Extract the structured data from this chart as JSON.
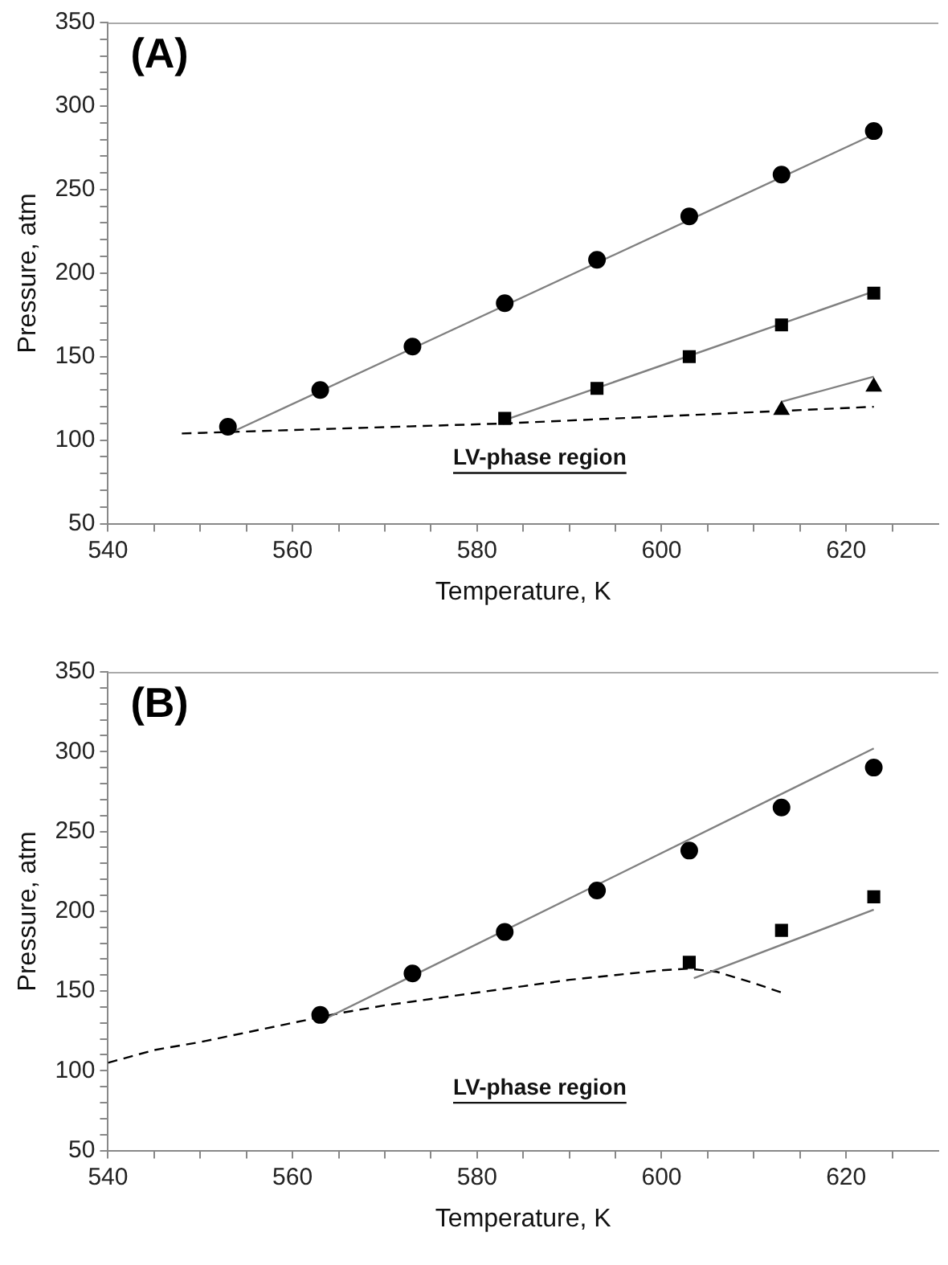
{
  "chart_data": [
    {
      "type": "scatter",
      "title": "(A)",
      "xlabel": "Temperature, K",
      "ylabel": "Pressure, atm",
      "grid": false,
      "legend": false,
      "xlim": [
        540,
        630
      ],
      "ylim": [
        50,
        350
      ],
      "xticks": [
        540,
        {
          "value": 545,
          "label": null
        },
        {
          "value": 550,
          "label": null
        },
        {
          "value": 555,
          "label": null
        },
        560,
        {
          "value": 565,
          "label": null
        },
        {
          "value": 570,
          "label": null
        },
        {
          "value": 575,
          "label": null
        },
        580,
        {
          "value": 585,
          "label": null
        },
        {
          "value": 590,
          "label": null
        },
        {
          "value": 595,
          "label": null
        },
        600,
        {
          "value": 605,
          "label": null
        },
        {
          "value": 610,
          "label": null
        },
        {
          "value": 615,
          "label": null
        },
        620,
        {
          "value": 625,
          "label": null
        }
      ],
      "yticks": [
        50,
        {
          "value": 60,
          "label": null
        },
        {
          "value": 70,
          "label": null
        },
        {
          "value": 80,
          "label": null
        },
        {
          "value": 90,
          "label": null
        },
        100,
        {
          "value": 110,
          "label": null
        },
        {
          "value": 120,
          "label": null
        },
        {
          "value": 130,
          "label": null
        },
        {
          "value": 140,
          "label": null
        },
        150,
        {
          "value": 160,
          "label": null
        },
        {
          "value": 170,
          "label": null
        },
        {
          "value": 180,
          "label": null
        },
        {
          "value": 190,
          "label": null
        },
        200,
        {
          "value": 210,
          "label": null
        },
        {
          "value": 220,
          "label": null
        },
        {
          "value": 230,
          "label": null
        },
        {
          "value": 240,
          "label": null
        },
        250,
        {
          "value": 260,
          "label": null
        },
        {
          "value": 270,
          "label": null
        },
        {
          "value": 280,
          "label": null
        },
        {
          "value": 290,
          "label": null
        },
        300,
        {
          "value": 310,
          "label": null
        },
        {
          "value": 320,
          "label": null
        },
        {
          "value": 330,
          "label": null
        },
        {
          "value": 340,
          "label": null
        },
        350
      ],
      "annotations": [
        "LV-phase region"
      ],
      "series": [
        {
          "type": "scatter",
          "marker": "circle",
          "color": "#000000",
          "x": [
            553,
            563,
            573,
            583,
            593,
            603,
            613,
            623
          ],
          "values": [
            108,
            130,
            156,
            182,
            208,
            234,
            259,
            285
          ]
        },
        {
          "type": "scatter",
          "marker": "square",
          "color": "#000000",
          "x": [
            583,
            593,
            603,
            613,
            623
          ],
          "values": [
            113,
            131,
            150,
            169,
            188
          ]
        },
        {
          "type": "scatter",
          "marker": "triangle",
          "color": "#000000",
          "x": [
            613,
            623
          ],
          "values": [
            118,
            132
          ]
        },
        {
          "type": "line",
          "marker": "none",
          "line_style": "solid",
          "color": "#808080",
          "x": [
            553.5,
            623
          ],
          "values": [
            105,
            283
          ]
        },
        {
          "type": "line",
          "marker": "none",
          "line_style": "solid",
          "color": "#808080",
          "x": [
            583,
            623
          ],
          "values": [
            112,
            189
          ]
        },
        {
          "type": "line",
          "marker": "none",
          "line_style": "solid",
          "color": "#808080",
          "x": [
            613,
            623
          ],
          "values": [
            123,
            138
          ]
        },
        {
          "type": "line",
          "marker": "none",
          "line_style": "dashed",
          "color": "#000000",
          "x": [
            548,
            583,
            603,
            623
          ],
          "values": [
            104,
            110,
            115,
            120
          ]
        }
      ]
    },
    {
      "type": "scatter",
      "title": "(B)",
      "xlabel": "Temperature, K",
      "ylabel": "Pressure, atm",
      "grid": false,
      "legend": false,
      "xlim": [
        540,
        630
      ],
      "ylim": [
        50,
        350
      ],
      "xticks": [
        540,
        {
          "value": 545,
          "label": null
        },
        {
          "value": 550,
          "label": null
        },
        {
          "value": 555,
          "label": null
        },
        560,
        {
          "value": 565,
          "label": null
        },
        {
          "value": 570,
          "label": null
        },
        {
          "value": 575,
          "label": null
        },
        580,
        {
          "value": 585,
          "label": null
        },
        {
          "value": 590,
          "label": null
        },
        {
          "value": 595,
          "label": null
        },
        600,
        {
          "value": 605,
          "label": null
        },
        {
          "value": 610,
          "label": null
        },
        {
          "value": 615,
          "label": null
        },
        620,
        {
          "value": 625,
          "label": null
        }
      ],
      "yticks": [
        50,
        {
          "value": 60,
          "label": null
        },
        {
          "value": 70,
          "label": null
        },
        {
          "value": 80,
          "label": null
        },
        {
          "value": 90,
          "label": null
        },
        100,
        {
          "value": 110,
          "label": null
        },
        {
          "value": 120,
          "label": null
        },
        {
          "value": 130,
          "label": null
        },
        {
          "value": 140,
          "label": null
        },
        150,
        {
          "value": 160,
          "label": null
        },
        {
          "value": 170,
          "label": null
        },
        {
          "value": 180,
          "label": null
        },
        {
          "value": 190,
          "label": null
        },
        200,
        {
          "value": 210,
          "label": null
        },
        {
          "value": 220,
          "label": null
        },
        {
          "value": 230,
          "label": null
        },
        {
          "value": 240,
          "label": null
        },
        250,
        {
          "value": 260,
          "label": null
        },
        {
          "value": 270,
          "label": null
        },
        {
          "value": 280,
          "label": null
        },
        {
          "value": 290,
          "label": null
        },
        300,
        {
          "value": 310,
          "label": null
        },
        {
          "value": 320,
          "label": null
        },
        {
          "value": 330,
          "label": null
        },
        {
          "value": 340,
          "label": null
        },
        350
      ],
      "annotations": [
        "LV-phase region"
      ],
      "series": [
        {
          "type": "scatter",
          "marker": "circle",
          "color": "#000000",
          "x": [
            563,
            573,
            583,
            593,
            603,
            613,
            623
          ],
          "values": [
            135,
            161,
            187,
            213,
            238,
            265,
            290
          ]
        },
        {
          "type": "scatter",
          "marker": "square",
          "color": "#000000",
          "x": [
            603,
            613,
            623
          ],
          "values": [
            168,
            188,
            209
          ]
        },
        {
          "type": "line",
          "marker": "none",
          "line_style": "solid",
          "color": "#808080",
          "x": [
            563,
            623
          ],
          "values": [
            131,
            302
          ]
        },
        {
          "type": "line",
          "marker": "none",
          "line_style": "solid",
          "color": "#808080",
          "x": [
            603.5,
            623
          ],
          "values": [
            158,
            201
          ]
        },
        {
          "type": "line",
          "marker": "none",
          "line_style": "dashed",
          "color": "#000000",
          "x": [
            540,
            545,
            550,
            555,
            560,
            565,
            570,
            575,
            580,
            585,
            590,
            595,
            600,
            603,
            606,
            610,
            613
          ],
          "values": [
            105,
            113,
            118,
            124,
            130,
            136,
            141,
            145,
            149,
            153,
            157,
            160,
            163,
            164,
            162,
            155,
            149
          ]
        }
      ]
    }
  ]
}
